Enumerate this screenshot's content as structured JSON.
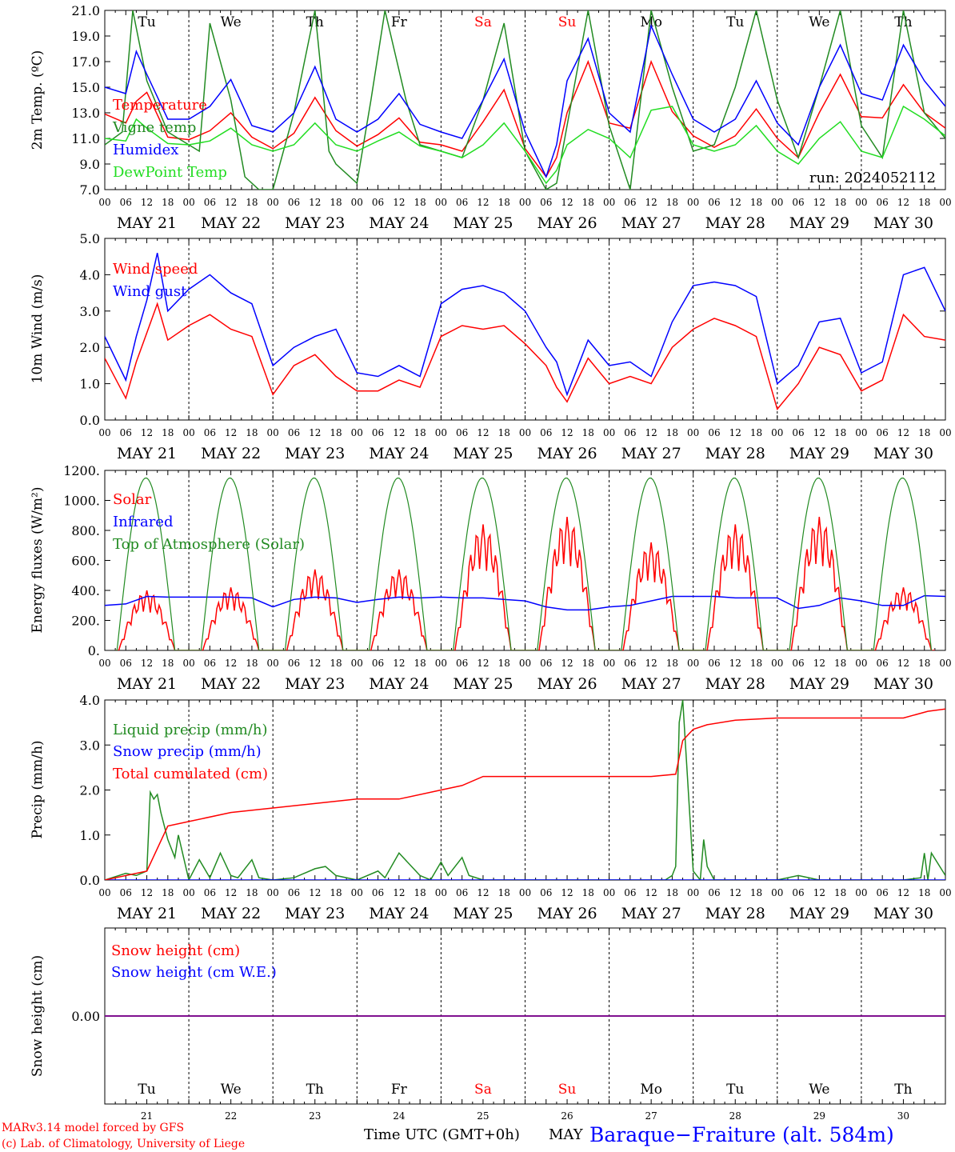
{
  "footer": {
    "credit_line1": "MARv3.14 model forced by GFS",
    "credit_line2": "(c) Lab. of Climatology, University of Liege",
    "time_label": "Time UTC (GMT+0h)",
    "month_label": "MAY",
    "station": "Baraque−Fraiture (alt. 584m)"
  },
  "colors": {
    "red": "#ff0000",
    "green": "#228b22",
    "blue": "#0000ff",
    "lightgreen": "#22dd22",
    "purple": "#800080"
  },
  "days": {
    "abbr": [
      "Tu",
      "We",
      "Th",
      "Fr",
      "Sa",
      "Su",
      "Mo",
      "Tu",
      "We",
      "Th"
    ],
    "weekend": [
      false,
      false,
      false,
      false,
      true,
      true,
      false,
      false,
      false,
      false
    ],
    "dates": [
      "MAY 21",
      "MAY 22",
      "MAY 23",
      "MAY 24",
      "MAY 25",
      "MAY 26",
      "MAY 27",
      "MAY 28",
      "MAY 29",
      "MAY 30"
    ],
    "numbers": [
      "21",
      "22",
      "23",
      "24",
      "25",
      "26",
      "27",
      "28",
      "29",
      "30"
    ],
    "hour_ticks": [
      "00",
      "06",
      "12",
      "18"
    ],
    "end_tick": "00"
  },
  "chart_data": [
    {
      "type": "line",
      "title": "",
      "ylabel": "2m Temp. (ºC)",
      "ylim": [
        7,
        21
      ],
      "yticks": [
        "7.0",
        "9.0",
        "11.0",
        "13.0",
        "15.0",
        "17.0",
        "19.0",
        "21.0"
      ],
      "annotation": "run: 2024052112",
      "x_unit": "hours since MAY 21 00 UTC",
      "series": [
        {
          "name": "Temperature",
          "color": "red",
          "x": [
            0,
            6,
            9,
            12,
            18,
            24,
            30,
            36,
            42,
            48,
            54,
            60,
            66,
            72,
            78,
            84,
            90,
            96,
            102,
            108,
            114,
            120,
            126,
            129,
            132,
            138,
            144,
            150,
            156,
            162,
            168,
            174,
            180,
            186,
            192,
            198,
            204,
            210,
            216,
            222,
            228,
            234,
            240
          ],
          "values": [
            12.9,
            12.2,
            13.9,
            14.6,
            11.1,
            10.9,
            11.6,
            13.0,
            11.1,
            10.2,
            11.4,
            14.2,
            11.6,
            10.4,
            11.3,
            12.6,
            10.7,
            10.5,
            10.0,
            12.3,
            14.8,
            10.2,
            8.0,
            9.5,
            13.0,
            17.0,
            12.2,
            11.8,
            17.0,
            13.1,
            11.2,
            10.3,
            11.2,
            13.3,
            11.0,
            9.5,
            13.0,
            16.0,
            12.7,
            12.6,
            15.2,
            13.0,
            11.8
          ]
        },
        {
          "name": "Vigne temp",
          "color": "green",
          "x": [
            0,
            5,
            8,
            12,
            18,
            24,
            27,
            30,
            36,
            40,
            44,
            48,
            54,
            60,
            64,
            66,
            72,
            76,
            80,
            86,
            90,
            96,
            102,
            108,
            114,
            120,
            126,
            129,
            132,
            138,
            144,
            150,
            156,
            162,
            168,
            174,
            180,
            186,
            192,
            198,
            204,
            210,
            216,
            222,
            228,
            234,
            240
          ],
          "values": [
            10.5,
            11.5,
            21.0,
            15.5,
            11.5,
            10.5,
            10.0,
            20.0,
            14.0,
            8.0,
            7.0,
            7.0,
            13.0,
            21.0,
            10.0,
            9.0,
            7.5,
            14.0,
            21.0,
            14.0,
            10.5,
            10.0,
            9.5,
            14.0,
            20.0,
            10.0,
            7.0,
            7.5,
            12.0,
            21.0,
            12.0,
            7.0,
            21.0,
            15.0,
            10.0,
            10.5,
            15.0,
            21.0,
            14.0,
            9.5,
            15.0,
            21.0,
            12.0,
            9.5,
            21.0,
            13.0,
            11.0
          ]
        },
        {
          "name": "Humidex",
          "color": "blue",
          "x": [
            0,
            6,
            9,
            12,
            18,
            24,
            30,
            36,
            42,
            48,
            54,
            60,
            66,
            72,
            78,
            84,
            90,
            96,
            102,
            108,
            114,
            120,
            126,
            129,
            132,
            138,
            144,
            150,
            156,
            162,
            168,
            174,
            180,
            186,
            192,
            198,
            204,
            210,
            216,
            222,
            228,
            234,
            240
          ],
          "values": [
            15.0,
            14.5,
            17.8,
            16.0,
            12.5,
            12.5,
            13.5,
            15.6,
            12.0,
            11.5,
            13.0,
            16.6,
            12.5,
            11.5,
            12.5,
            14.5,
            12.1,
            11.5,
            11.0,
            14.0,
            17.2,
            11.5,
            8.0,
            10.5,
            15.5,
            18.8,
            13.0,
            11.5,
            19.8,
            16.0,
            12.5,
            11.5,
            12.5,
            15.5,
            12.2,
            10.5,
            15.0,
            18.3,
            14.5,
            14.0,
            18.3,
            15.5,
            13.5
          ]
        },
        {
          "name": "DewPoint Temp",
          "color": "lightgreen",
          "x": [
            0,
            6,
            9,
            12,
            18,
            24,
            30,
            36,
            42,
            48,
            54,
            60,
            66,
            72,
            78,
            84,
            90,
            96,
            102,
            108,
            114,
            120,
            126,
            129,
            132,
            138,
            144,
            150,
            156,
            162,
            168,
            174,
            180,
            186,
            192,
            198,
            204,
            210,
            216,
            222,
            228,
            234,
            240
          ],
          "values": [
            11.0,
            10.8,
            12.5,
            11.8,
            10.6,
            10.5,
            10.8,
            11.8,
            10.5,
            10.0,
            10.5,
            12.2,
            10.5,
            10.0,
            10.8,
            11.5,
            10.4,
            10.0,
            9.5,
            10.5,
            12.2,
            10.0,
            7.5,
            8.5,
            10.5,
            11.7,
            11.0,
            9.5,
            13.2,
            13.5,
            10.5,
            10.0,
            10.5,
            12.0,
            10.0,
            9.0,
            11.0,
            12.3,
            10.0,
            9.5,
            13.5,
            12.5,
            11.2
          ]
        }
      ]
    },
    {
      "type": "line",
      "title": "",
      "ylabel": "10m Wind (m/s)",
      "ylim": [
        0,
        5
      ],
      "yticks": [
        "0.0",
        "1.0",
        "2.0",
        "3.0",
        "4.0",
        "5.0"
      ],
      "x_unit": "hours since MAY 21 00 UTC",
      "series": [
        {
          "name": "Wind speed",
          "color": "red",
          "x": [
            0,
            6,
            9,
            12,
            15,
            18,
            24,
            30,
            36,
            42,
            48,
            54,
            60,
            66,
            72,
            78,
            84,
            90,
            96,
            102,
            108,
            114,
            120,
            126,
            129,
            132,
            138,
            144,
            150,
            156,
            162,
            168,
            174,
            180,
            186,
            192,
            198,
            204,
            210,
            216,
            222,
            228,
            234,
            240
          ],
          "values": [
            1.7,
            0.6,
            1.6,
            2.4,
            3.2,
            2.2,
            2.6,
            2.9,
            2.5,
            2.3,
            0.7,
            1.5,
            1.8,
            1.2,
            0.8,
            0.8,
            1.1,
            0.9,
            2.3,
            2.6,
            2.5,
            2.6,
            2.1,
            1.5,
            0.9,
            0.5,
            1.7,
            1.0,
            1.2,
            1.0,
            2.0,
            2.5,
            2.8,
            2.6,
            2.3,
            0.3,
            1.0,
            2.0,
            1.8,
            0.8,
            1.1,
            2.9,
            2.3,
            2.2
          ]
        },
        {
          "name": "Wind gust",
          "color": "blue",
          "x": [
            0,
            6,
            9,
            12,
            15,
            18,
            24,
            30,
            36,
            42,
            48,
            54,
            60,
            66,
            72,
            78,
            84,
            90,
            96,
            102,
            108,
            114,
            120,
            126,
            129,
            132,
            138,
            144,
            150,
            156,
            162,
            168,
            174,
            180,
            186,
            192,
            198,
            204,
            210,
            216,
            222,
            228,
            234,
            240
          ],
          "values": [
            2.3,
            1.1,
            2.3,
            3.3,
            4.6,
            3.0,
            3.6,
            4.0,
            3.5,
            3.2,
            1.5,
            2.0,
            2.3,
            2.5,
            1.3,
            1.2,
            1.5,
            1.2,
            3.2,
            3.6,
            3.7,
            3.5,
            3.0,
            2.0,
            1.6,
            0.7,
            2.2,
            1.5,
            1.6,
            1.2,
            2.7,
            3.7,
            3.8,
            3.7,
            3.4,
            1.0,
            1.5,
            2.7,
            2.8,
            1.3,
            1.6,
            4.0,
            4.2,
            3.0
          ]
        }
      ]
    },
    {
      "type": "line",
      "title": "",
      "ylabel": "Energy fluxes (W/m²)",
      "ylim": [
        0,
        1200
      ],
      "yticks": [
        "0.",
        "200.",
        "400.",
        "600.",
        "800.",
        "1000.",
        "1200."
      ],
      "x_unit": "hours since MAY 21 00 UTC",
      "series": [
        {
          "name": "Solar",
          "color": "red",
          "day_peaks": [
            400,
            420,
            540,
            540,
            840,
            890,
            720,
            840,
            890,
            420
          ]
        },
        {
          "name": "Infrared",
          "color": "blue",
          "x": [
            0,
            6,
            12,
            18,
            24,
            30,
            36,
            42,
            48,
            54,
            60,
            66,
            72,
            78,
            84,
            90,
            96,
            102,
            108,
            114,
            120,
            126,
            132,
            138,
            144,
            150,
            156,
            162,
            168,
            174,
            180,
            186,
            192,
            198,
            204,
            210,
            216,
            222,
            228,
            234,
            240
          ],
          "values": [
            300,
            310,
            360,
            355,
            355,
            355,
            355,
            350,
            290,
            340,
            355,
            350,
            320,
            340,
            355,
            350,
            355,
            350,
            350,
            340,
            330,
            290,
            270,
            270,
            290,
            300,
            330,
            360,
            360,
            360,
            350,
            350,
            350,
            280,
            300,
            350,
            330,
            300,
            300,
            365,
            360
          ]
        },
        {
          "name": "Top of Atmosphere (Solar)",
          "color": "green",
          "daily_peak": 1150
        }
      ]
    },
    {
      "type": "line",
      "title": "",
      "ylabel": "Precip (mm/h)",
      "ylim": [
        0,
        4
      ],
      "yticks": [
        "0.0",
        "1.0",
        "2.0",
        "3.0",
        "4.0"
      ],
      "x_unit": "hours since MAY 21 00 UTC",
      "series": [
        {
          "name": "Liquid precip (mm/h)",
          "color": "green",
          "x": [
            0,
            6,
            9,
            12,
            13,
            14,
            15,
            16,
            18,
            20,
            21,
            24,
            27,
            30,
            33,
            36,
            38,
            42,
            44,
            48,
            54,
            60,
            63,
            66,
            72,
            78,
            80,
            84,
            90,
            93,
            96,
            98,
            102,
            104,
            108,
            120,
            132,
            144,
            156,
            160,
            162,
            163,
            164,
            165,
            168,
            170,
            171,
            172,
            174,
            180,
            192,
            198,
            204,
            216,
            228,
            233,
            234,
            235,
            236,
            240
          ],
          "values": [
            0,
            0.15,
            0.1,
            0.2,
            1.95,
            1.8,
            1.9,
            1.5,
            0.9,
            0.5,
            1.0,
            0,
            0.45,
            0.05,
            0.6,
            0.1,
            0.05,
            0.45,
            0.05,
            0,
            0.05,
            0.25,
            0.3,
            0.1,
            0,
            0.2,
            0.05,
            0.6,
            0.1,
            0,
            0.4,
            0.1,
            0.5,
            0.1,
            0,
            0,
            0,
            0,
            0,
            0,
            0.1,
            0.3,
            3.5,
            4.0,
            0.2,
            0,
            0.9,
            0.3,
            0,
            0,
            0,
            0.1,
            0,
            0,
            0,
            0.05,
            0.6,
            0,
            0.6,
            0.1
          ]
        },
        {
          "name": "Snow precip (mm/h)",
          "color": "blue",
          "x": [
            0,
            240
          ],
          "values": [
            0,
            0
          ]
        },
        {
          "name": "Total cumulated (cm)",
          "color": "red",
          "x": [
            0,
            12,
            18,
            24,
            36,
            48,
            60,
            72,
            84,
            96,
            102,
            108,
            120,
            132,
            144,
            156,
            163,
            165,
            168,
            172,
            180,
            192,
            204,
            216,
            228,
            235,
            240
          ],
          "values": [
            0,
            0.2,
            1.2,
            1.3,
            1.5,
            1.6,
            1.7,
            1.8,
            1.8,
            2.0,
            2.1,
            2.3,
            2.3,
            2.3,
            2.3,
            2.3,
            2.35,
            3.1,
            3.35,
            3.45,
            3.55,
            3.6,
            3.6,
            3.6,
            3.6,
            3.75,
            3.8
          ]
        }
      ]
    },
    {
      "type": "line",
      "title": "",
      "ylabel": "Snow height (cm)",
      "yticks": [
        "0.00"
      ],
      "x_unit": "hours since MAY 21 00 UTC",
      "series": [
        {
          "name": "Snow height (cm)",
          "color": "red",
          "x": [
            0,
            240
          ],
          "values": [
            0,
            0
          ]
        },
        {
          "name": "Snow height (cm W.E.)",
          "color": "blue",
          "x": [
            0,
            240
          ],
          "values": [
            0,
            0
          ]
        }
      ]
    }
  ]
}
